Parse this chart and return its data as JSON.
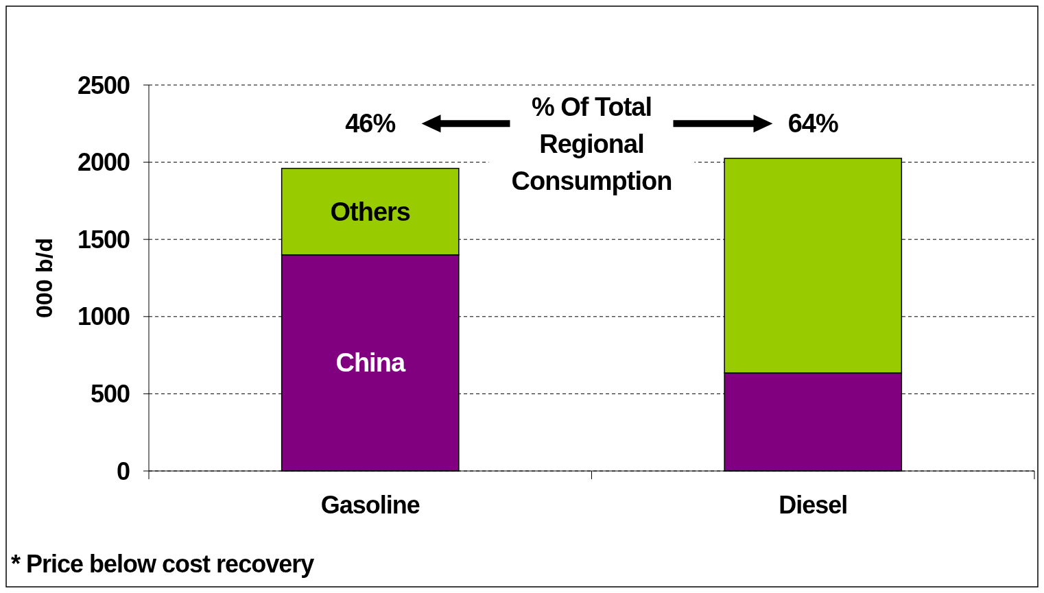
{
  "chart_data": {
    "type": "bar",
    "stacked": true,
    "categories": [
      "Gasoline",
      "Diesel"
    ],
    "ylabel": "000 b/d",
    "ylim": [
      0,
      2500
    ],
    "yticks": [
      0,
      500,
      1000,
      1500,
      2000,
      2500
    ],
    "grid": "y",
    "series": [
      {
        "name": "China",
        "color": "#800080",
        "values": [
          1400,
          635
        ]
      },
      {
        "name": "Others",
        "color": "#99cc00",
        "values": [
          560,
          1390
        ]
      }
    ],
    "annotations": [
      "46%",
      "64%",
      "% Of Total Regional Consumption",
      "* Price below cost recovery"
    ]
  }
}
